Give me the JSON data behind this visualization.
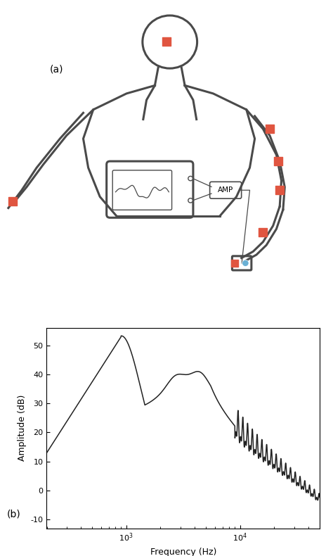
{
  "fig_width": 4.74,
  "fig_height": 7.9,
  "dpi": 100,
  "bg_color": "#ffffff",
  "body_color": "#4a4a4a",
  "electrode_color_red": "#E05540",
  "electrode_color_blue": "#6ab0d4",
  "label_a": "(a)",
  "label_b": "(b)",
  "ylabel": "Amplitude (dB)",
  "xlabel": "Frequency (Hz)",
  "ylim": [
    -13,
    56
  ],
  "yticks": [
    -10,
    0,
    10,
    20,
    30,
    40,
    50
  ],
  "xlim_log": [
    2.3,
    4.7
  ],
  "line_color": "#222222",
  "line_width": 1.1
}
